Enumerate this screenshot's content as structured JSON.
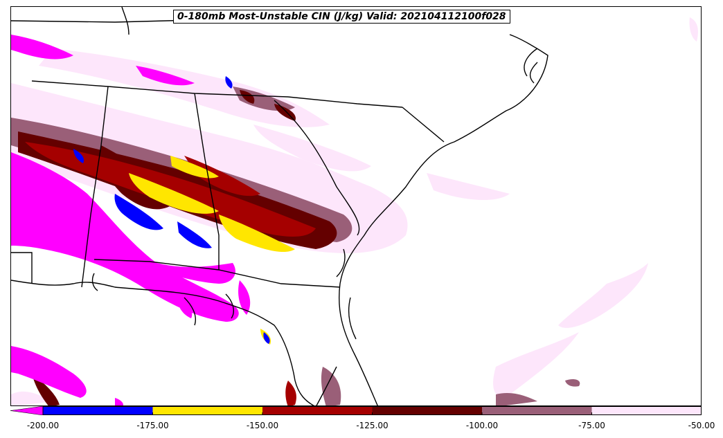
{
  "title": "0-180mb Most-Unstable CIN (J/kg) Valid: 202104112100f028",
  "colorbar": {
    "tick_labels": [
      "-200.00",
      "-175.00",
      "-150.00",
      "-125.00",
      "-100.00",
      "-75.00",
      "-50.00"
    ],
    "tick_values": [
      -200,
      -175,
      -150,
      -125,
      -100,
      -75,
      -50
    ],
    "bins": [
      {
        "from": -200,
        "to": -175,
        "color": "#0000ff"
      },
      {
        "from": -175,
        "to": -150,
        "color": "#ffe600"
      },
      {
        "from": -150,
        "to": -125,
        "color": "#a50000"
      },
      {
        "from": -125,
        "to": -100,
        "color": "#640000"
      },
      {
        "from": -100,
        "to": -75,
        "color": "#9a5f78"
      },
      {
        "from": -75,
        "to": -50,
        "color": "#fde6fb"
      }
    ],
    "under_color": "#ff00ff",
    "range": [
      -200,
      -50
    ]
  },
  "colors": {
    "magenta": "#ff00ff",
    "blue": "#0000ff",
    "yellow": "#ffe600",
    "red": "#a50000",
    "darkred": "#640000",
    "mauve": "#9a5f78",
    "pink": "#fde6fb"
  }
}
